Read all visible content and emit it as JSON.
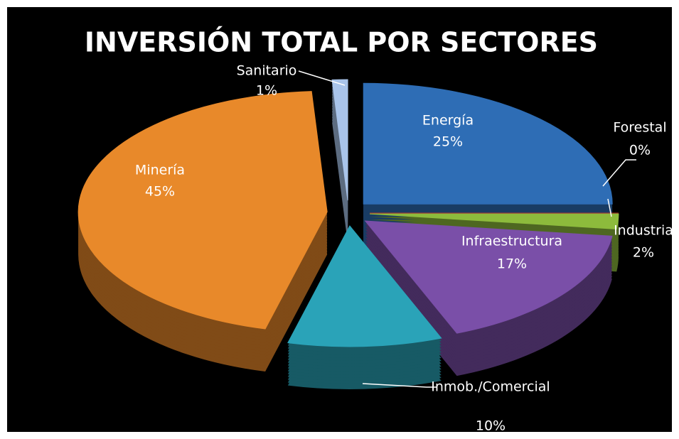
{
  "chart_data": {
    "type": "pie",
    "title": "INVERSIÓN TOTAL POR SECTORES",
    "categories": [
      "Energía",
      "Forestal",
      "Industria",
      "Infraestructura",
      "Inmob./Comercial",
      "Minería",
      "Sanitario"
    ],
    "values": [
      25,
      0,
      2,
      17,
      10,
      45,
      1
    ],
    "value_labels": [
      "25%",
      "0%",
      "2%",
      "17%",
      "10%",
      "45%",
      "1%"
    ],
    "colors": [
      "#2e6db5",
      "#c0392b",
      "#8dbb3c",
      "#7a4fa8",
      "#2aa3b8",
      "#e8892a",
      "#a9c4ea"
    ]
  }
}
